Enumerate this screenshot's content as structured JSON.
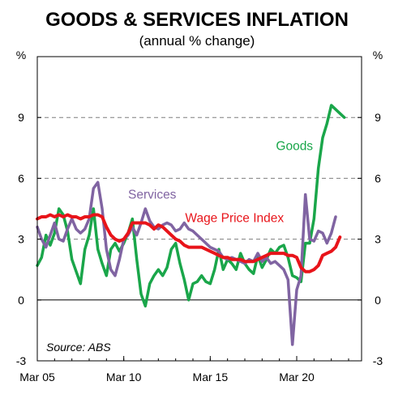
{
  "chart_data": {
    "type": "line",
    "title": "GOODS & SERVICES INFLATION",
    "subtitle": "(annual % change)",
    "ylabel_left": "%",
    "ylabel_right": "%",
    "ylim": [
      -3,
      12
    ],
    "yticks": [
      -3,
      0,
      3,
      6,
      9
    ],
    "ytick_labels": [
      "-3",
      "0",
      "3",
      "6",
      "9"
    ],
    "xlim": [
      2005.0,
      2023.75
    ],
    "xticks": [
      2005.0,
      2010.0,
      2015.0,
      2020.0
    ],
    "xtick_labels": [
      "Mar 05",
      "Mar 10",
      "Mar 15",
      "Mar 20"
    ],
    "grid": "dashed horizontal at 3, 6, 9",
    "source": "Source: ABS",
    "series": [
      {
        "name": "Goods",
        "color": "#1aa64a",
        "label_x": 2018.8,
        "label_y": 7.4,
        "x": [
          2005.0,
          2005.25,
          2005.5,
          2005.75,
          2006.0,
          2006.25,
          2006.5,
          2006.75,
          2007.0,
          2007.25,
          2007.5,
          2007.75,
          2008.0,
          2008.25,
          2008.5,
          2008.75,
          2009.0,
          2009.25,
          2009.5,
          2009.75,
          2010.0,
          2010.25,
          2010.5,
          2010.75,
          2011.0,
          2011.25,
          2011.5,
          2011.75,
          2012.0,
          2012.25,
          2012.5,
          2012.75,
          2013.0,
          2013.25,
          2013.5,
          2013.75,
          2014.0,
          2014.25,
          2014.5,
          2014.75,
          2015.0,
          2015.25,
          2015.5,
          2015.75,
          2016.0,
          2016.25,
          2016.5,
          2016.75,
          2017.0,
          2017.25,
          2017.5,
          2017.75,
          2018.0,
          2018.25,
          2018.5,
          2018.75,
          2019.0,
          2019.25,
          2019.5,
          2019.75,
          2020.0,
          2020.25,
          2020.5,
          2020.75,
          2021.0,
          2021.25,
          2021.5,
          2021.75,
          2022.0,
          2022.25,
          2022.5,
          2022.75
        ],
        "y": [
          1.7,
          2.1,
          3.2,
          2.7,
          3.3,
          4.5,
          4.2,
          3.4,
          2.0,
          1.4,
          0.8,
          2.5,
          3.2,
          4.5,
          2.5,
          1.8,
          1.2,
          2.5,
          2.8,
          2.4,
          2.8,
          3.3,
          4.0,
          2.0,
          0.3,
          -0.3,
          0.8,
          1.2,
          1.5,
          1.2,
          1.6,
          2.5,
          2.8,
          1.8,
          1.0,
          0.0,
          0.8,
          0.9,
          1.2,
          0.9,
          0.8,
          1.5,
          2.5,
          1.5,
          2.0,
          1.8,
          1.5,
          2.3,
          1.8,
          1.5,
          1.3,
          2.2,
          1.6,
          2.0,
          2.5,
          2.3,
          2.6,
          2.7,
          2.1,
          1.2,
          1.1,
          0.9,
          2.8,
          2.8,
          4.0,
          6.5,
          8.0,
          8.7,
          9.6,
          9.4,
          9.2,
          9.0
        ]
      },
      {
        "name": "Services",
        "color": "#8064a2",
        "label_x": 2010.25,
        "label_y": 5.0,
        "x": [
          2005.0,
          2005.25,
          2005.5,
          2005.75,
          2006.0,
          2006.25,
          2006.5,
          2006.75,
          2007.0,
          2007.25,
          2007.5,
          2007.75,
          2008.0,
          2008.25,
          2008.5,
          2008.75,
          2009.0,
          2009.25,
          2009.5,
          2009.75,
          2010.0,
          2010.25,
          2010.5,
          2010.75,
          2011.0,
          2011.25,
          2011.5,
          2011.75,
          2012.0,
          2012.25,
          2012.5,
          2012.75,
          2013.0,
          2013.25,
          2013.5,
          2013.75,
          2014.0,
          2014.25,
          2014.5,
          2014.75,
          2015.0,
          2015.25,
          2015.5,
          2015.75,
          2016.0,
          2016.25,
          2016.5,
          2016.75,
          2017.0,
          2017.25,
          2017.5,
          2017.75,
          2018.0,
          2018.25,
          2018.5,
          2018.75,
          2019.0,
          2019.25,
          2019.5,
          2019.75,
          2020.0,
          2020.25,
          2020.5,
          2020.75,
          2021.0,
          2021.25,
          2021.5,
          2021.75,
          2022.0,
          2022.25
        ],
        "y": [
          3.6,
          3.0,
          2.6,
          3.2,
          3.8,
          3.0,
          2.9,
          3.5,
          4.0,
          3.5,
          3.3,
          3.5,
          4.0,
          5.5,
          5.8,
          4.5,
          2.5,
          1.5,
          1.2,
          2.0,
          3.0,
          3.2,
          3.6,
          3.2,
          3.8,
          4.5,
          3.9,
          3.6,
          3.5,
          3.7,
          3.8,
          3.7,
          3.4,
          3.5,
          3.8,
          3.5,
          3.4,
          3.2,
          3.0,
          2.8,
          2.6,
          2.5,
          2.4,
          2.1,
          2.0,
          2.1,
          2.0,
          1.9,
          1.8,
          2.0,
          1.9,
          2.3,
          1.9,
          2.1,
          1.8,
          1.9,
          1.7,
          1.5,
          1.0,
          -2.2,
          0.5,
          1.2,
          5.2,
          3.0,
          2.9,
          3.4,
          3.3,
          2.8,
          3.3,
          4.1
        ]
      },
      {
        "name": "Wage Price Index",
        "color": "#e8141a",
        "label_x": 2013.55,
        "label_y": 3.85,
        "x": [
          2005.0,
          2005.25,
          2005.5,
          2005.75,
          2006.0,
          2006.25,
          2006.5,
          2006.75,
          2007.0,
          2007.25,
          2007.5,
          2007.75,
          2008.0,
          2008.25,
          2008.5,
          2008.75,
          2009.0,
          2009.25,
          2009.5,
          2009.75,
          2010.0,
          2010.25,
          2010.5,
          2010.75,
          2011.0,
          2011.25,
          2011.5,
          2011.75,
          2012.0,
          2012.25,
          2012.5,
          2012.75,
          2013.0,
          2013.25,
          2013.5,
          2013.75,
          2014.0,
          2014.25,
          2014.5,
          2014.75,
          2015.0,
          2015.25,
          2015.5,
          2015.75,
          2016.0,
          2016.25,
          2016.5,
          2016.75,
          2017.0,
          2017.25,
          2017.5,
          2017.75,
          2018.0,
          2018.25,
          2018.5,
          2018.75,
          2019.0,
          2019.25,
          2019.5,
          2019.75,
          2020.0,
          2020.25,
          2020.5,
          2020.75,
          2021.0,
          2021.25,
          2021.5,
          2021.75,
          2022.0,
          2022.25,
          2022.5
        ],
        "y": [
          4.0,
          4.1,
          4.1,
          4.2,
          4.1,
          4.2,
          4.1,
          4.2,
          4.1,
          4.1,
          4.0,
          4.1,
          4.1,
          4.2,
          4.2,
          4.1,
          3.6,
          3.2,
          3.0,
          2.9,
          3.0,
          3.3,
          3.8,
          3.8,
          3.8,
          3.8,
          3.7,
          3.5,
          3.7,
          3.6,
          3.4,
          3.2,
          3.0,
          2.9,
          2.7,
          2.6,
          2.6,
          2.6,
          2.6,
          2.5,
          2.4,
          2.3,
          2.2,
          2.1,
          2.1,
          2.0,
          2.0,
          2.0,
          1.9,
          1.9,
          1.9,
          2.0,
          2.1,
          2.2,
          2.3,
          2.3,
          2.3,
          2.3,
          2.2,
          2.2,
          2.1,
          1.6,
          1.4,
          1.4,
          1.5,
          1.7,
          2.2,
          2.3,
          2.4,
          2.6,
          3.1
        ]
      }
    ]
  }
}
